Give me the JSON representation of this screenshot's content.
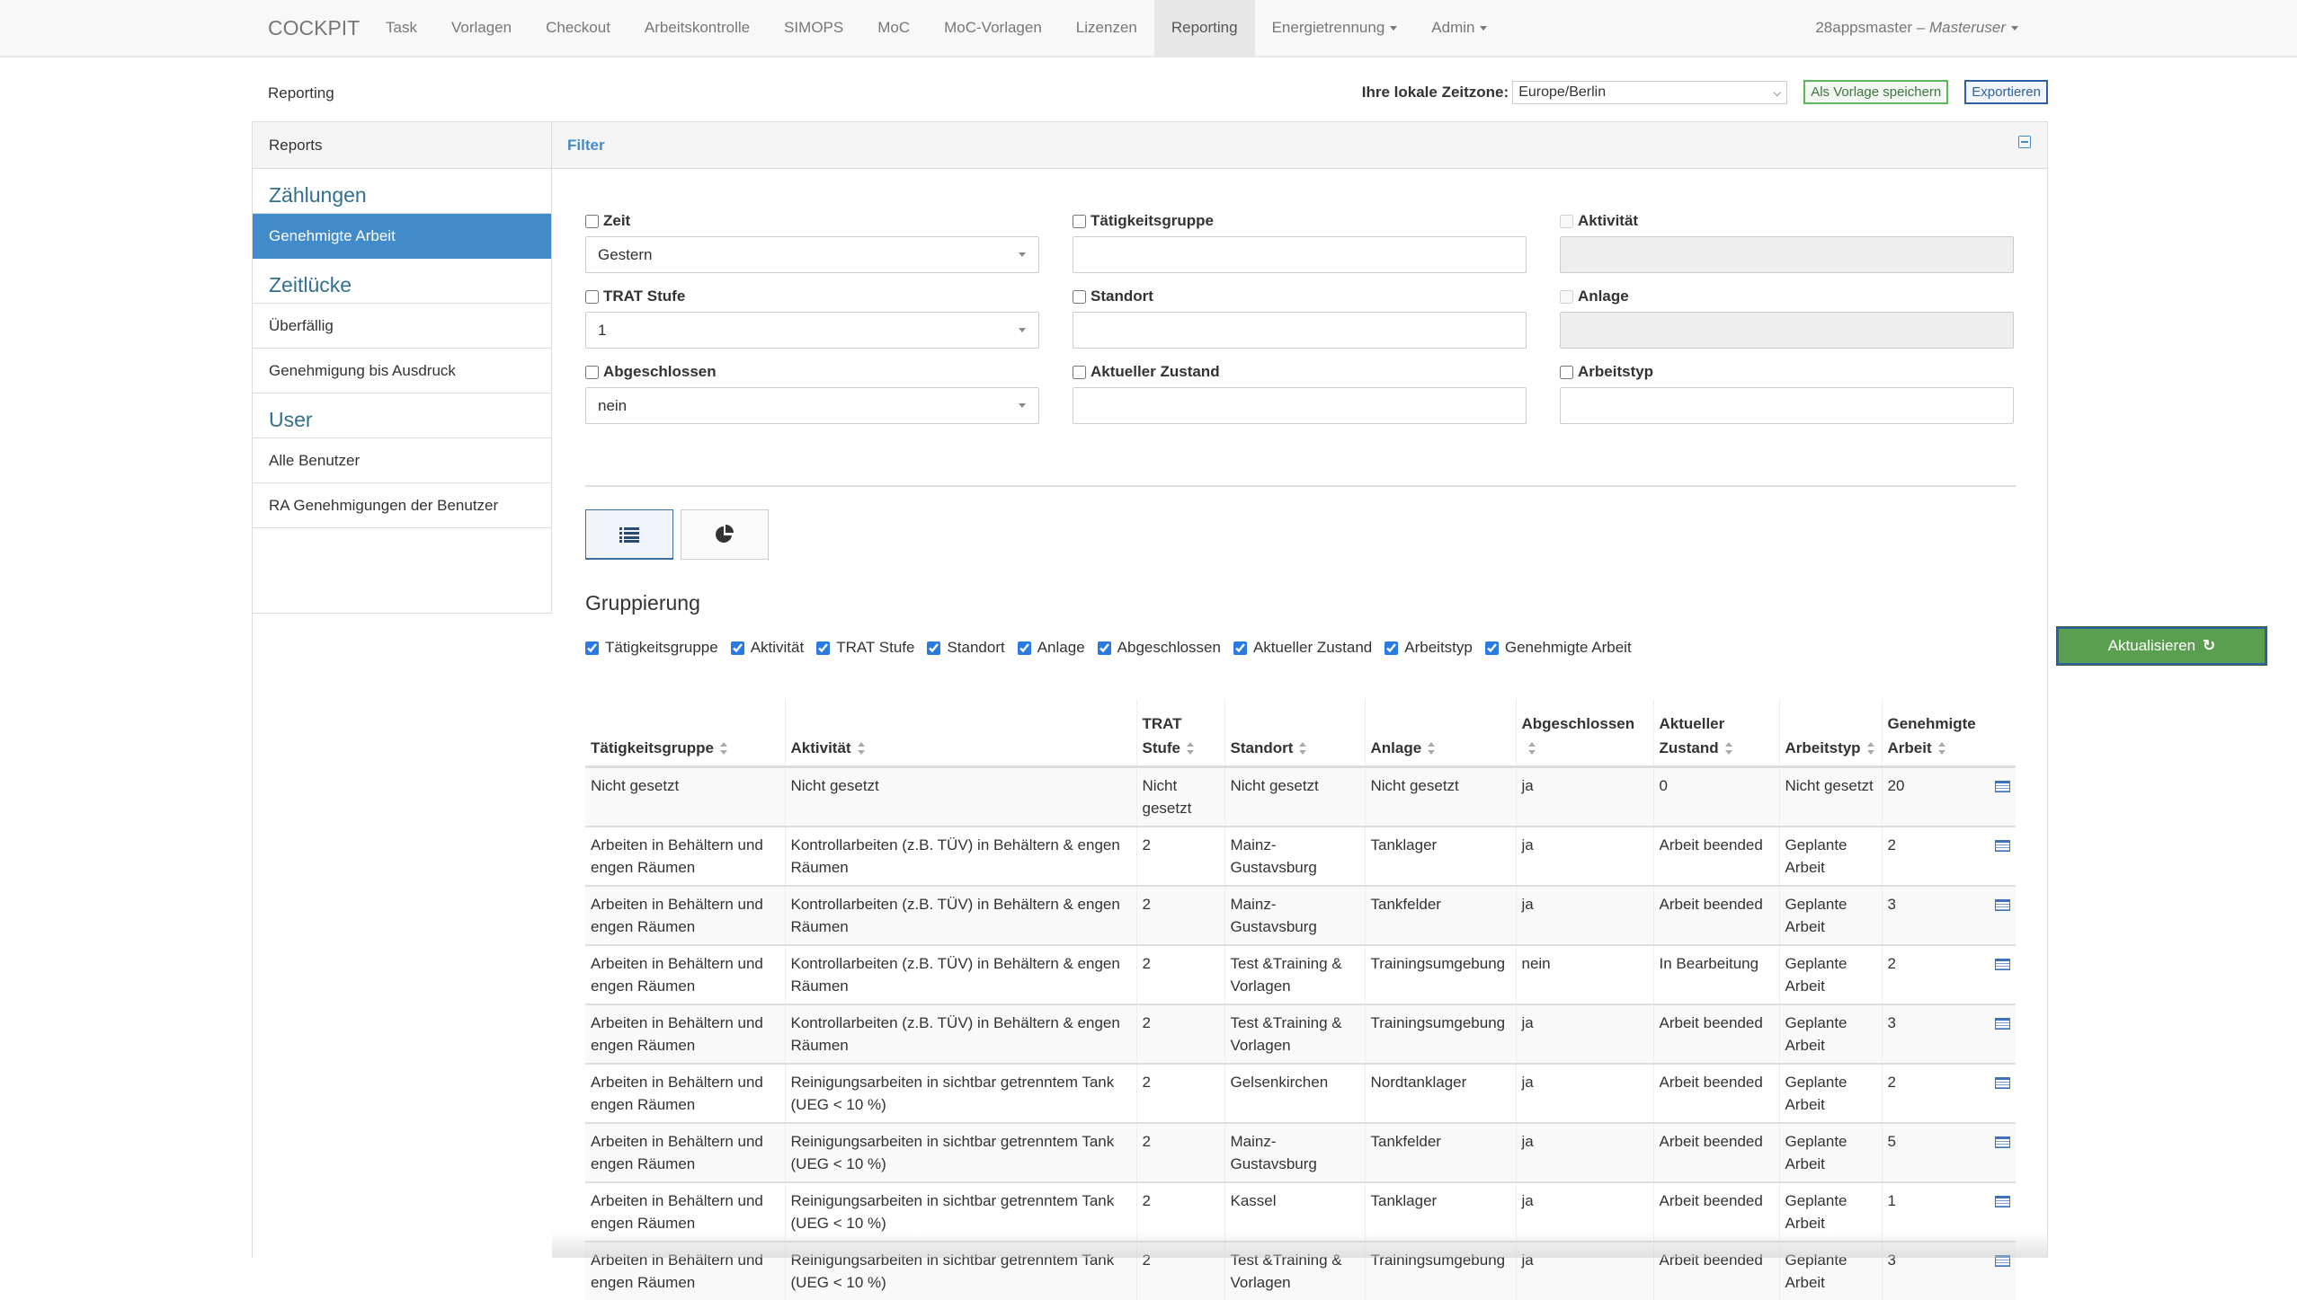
{
  "nav": {
    "brand": "COCKPIT",
    "items": [
      {
        "label": "Task"
      },
      {
        "label": "Vorlagen"
      },
      {
        "label": "Checkout"
      },
      {
        "label": "Arbeitskontrolle"
      },
      {
        "label": "SIMOPS"
      },
      {
        "label": "MoC"
      },
      {
        "label": "MoC-Vorlagen"
      },
      {
        "label": "Lizenzen"
      },
      {
        "label": "Reporting",
        "active": true
      },
      {
        "label": "Energietrennung",
        "dropdown": true
      },
      {
        "label": "Admin",
        "dropdown": true
      }
    ],
    "user": "28appsmaster",
    "role": "Masteruser",
    "sep": " – "
  },
  "top": {
    "title": "Reporting",
    "tz_label": "Ihre lokale Zeitzone:",
    "tz_value": "Europe/Berlin",
    "save_template": "Als Vorlage speichern",
    "export": "Exportieren"
  },
  "sidebar": {
    "header": "Reports",
    "sections": [
      {
        "title": "Zählungen",
        "items": [
          "Genehmigte Arbeit"
        ]
      },
      {
        "title": "Zeitlücke",
        "items": [
          "Überfällig",
          "Genehmigung bis Ausdruck"
        ]
      },
      {
        "title": "User",
        "items": [
          "Alle Benutzer",
          "RA Genehmigungen der Benutzer"
        ]
      }
    ],
    "active": "Genehmigte Arbeit"
  },
  "filter": {
    "title": "Filter",
    "fields": [
      {
        "label": "Zeit",
        "value": "Gestern",
        "type": "select"
      },
      {
        "label": "Tätigkeitsgruppe",
        "value": "",
        "type": "text"
      },
      {
        "label": "Aktivität",
        "value": "",
        "type": "disabled"
      },
      {
        "label": "TRAT Stufe",
        "value": "1",
        "type": "select"
      },
      {
        "label": "Standort",
        "value": "",
        "type": "text"
      },
      {
        "label": "Anlage",
        "value": "",
        "type": "disabled"
      },
      {
        "label": "Abgeschlossen",
        "value": "nein",
        "type": "select"
      },
      {
        "label": "Aktueller Zustand",
        "value": "",
        "type": "text"
      },
      {
        "label": "Arbeitstyp",
        "value": "",
        "type": "text"
      }
    ]
  },
  "view": {
    "list_icon": "list-icon",
    "chart_icon": "pie-chart-icon",
    "active": "list"
  },
  "grouping": {
    "title": "Gruppierung",
    "options": [
      "Tätigkeitsgruppe",
      "Aktivität",
      "TRAT Stufe",
      "Standort",
      "Anlage",
      "Abgeschlossen",
      "Aktueller Zustand",
      "Arbeitstyp",
      "Genehmigte Arbeit"
    ],
    "update": "Aktualisieren"
  },
  "table": {
    "headers": [
      "Tätigkeitsgruppe",
      "Aktivität",
      "TRAT Stufe",
      "Standort",
      "Anlage",
      "Abgeschlossen",
      "Aktueller Zustand",
      "Arbeitstyp",
      "Genehmigte Arbeit"
    ],
    "rows": [
      [
        "Nicht gesetzt",
        "Nicht gesetzt",
        "Nicht gesetzt",
        "Nicht gesetzt",
        "Nicht gesetzt",
        "ja",
        "0",
        "Nicht gesetzt",
        "20"
      ],
      [
        "Arbeiten in Behältern und engen Räumen",
        "Kontrollarbeiten (z.B. TÜV) in Behältern & engen Räumen",
        "2",
        "Mainz-Gustavsburg",
        "Tanklager",
        "ja",
        "Arbeit beended",
        "Geplante Arbeit",
        "2"
      ],
      [
        "Arbeiten in Behältern und engen Räumen",
        "Kontrollarbeiten (z.B. TÜV) in Behältern & engen Räumen",
        "2",
        "Mainz-Gustavsburg",
        "Tankfelder",
        "ja",
        "Arbeit beended",
        "Geplante Arbeit",
        "3"
      ],
      [
        "Arbeiten in Behältern und engen Räumen",
        "Kontrollarbeiten (z.B. TÜV) in Behältern & engen Räumen",
        "2",
        "Test &Training & Vorlagen",
        "Trainingsumgebung",
        "nein",
        "In Bearbeitung",
        "Geplante Arbeit",
        "2"
      ],
      [
        "Arbeiten in Behältern und engen Räumen",
        "Kontrollarbeiten (z.B. TÜV) in Behältern & engen Räumen",
        "2",
        "Test &Training & Vorlagen",
        "Trainingsumgebung",
        "ja",
        "Arbeit beended",
        "Geplante Arbeit",
        "3"
      ],
      [
        "Arbeiten in Behältern und engen Räumen",
        "Reinigungsarbeiten in sichtbar getrenntem Tank (UEG < 10 %)",
        "2",
        "Gelsenkirchen",
        "Nordtanklager",
        "ja",
        "Arbeit beended",
        "Geplante Arbeit",
        "2"
      ],
      [
        "Arbeiten in Behältern und engen Räumen",
        "Reinigungsarbeiten in sichtbar getrenntem Tank (UEG < 10 %)",
        "2",
        "Mainz-Gustavsburg",
        "Tankfelder",
        "ja",
        "Arbeit beended",
        "Geplante Arbeit",
        "5"
      ],
      [
        "Arbeiten in Behältern und engen Räumen",
        "Reinigungsarbeiten in sichtbar getrenntem Tank (UEG < 10 %)",
        "2",
        "Kassel",
        "Tanklager",
        "ja",
        "Arbeit beended",
        "Geplante Arbeit",
        "1"
      ],
      [
        "Arbeiten in Behältern und engen Räumen",
        "Reinigungsarbeiten in sichtbar getrenntem Tank (UEG < 10 %)",
        "2",
        "Test &Training & Vorlagen",
        "Trainingsumgebung",
        "ja",
        "Arbeit beended",
        "Geplante Arbeit",
        "3"
      ]
    ],
    "row_icon": "table-detail-icon"
  },
  "colors": {
    "primary": "#428bca",
    "success": "#5a9e4f",
    "heading": "#31708f"
  }
}
